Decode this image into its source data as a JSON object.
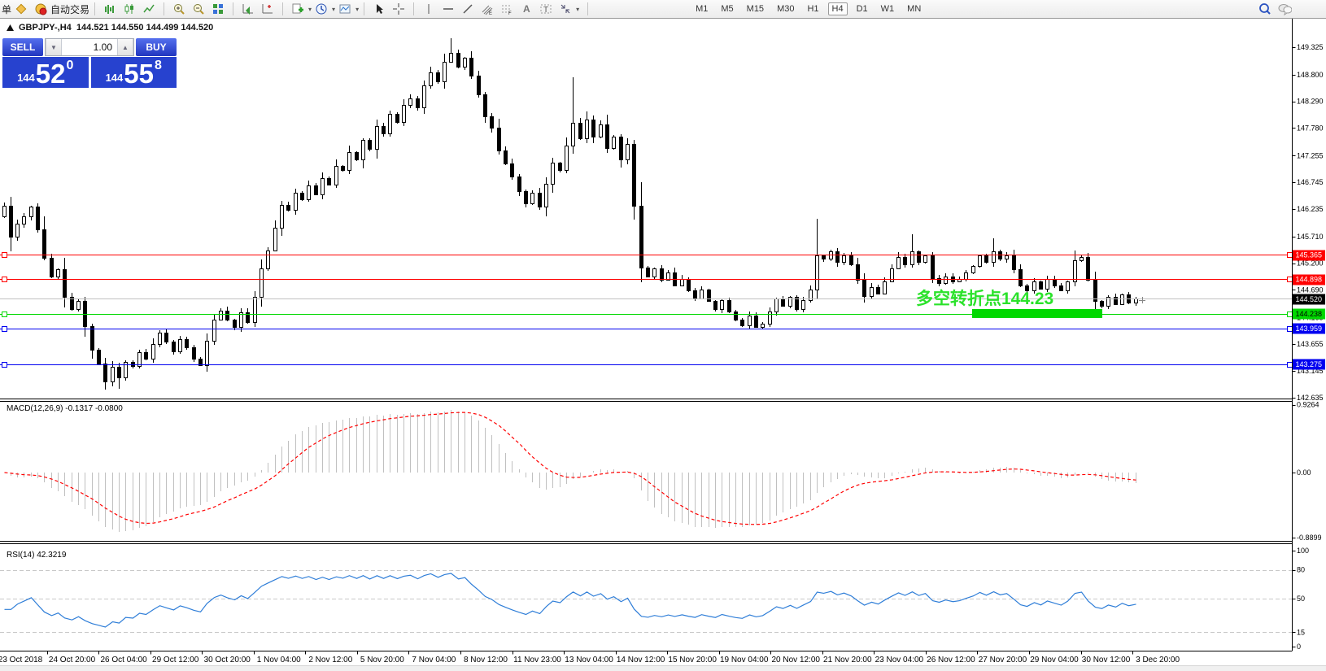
{
  "toolbar": {
    "clipped_left_label": "单",
    "autotrade_label": "自动交易",
    "timeframes": [
      "M1",
      "M5",
      "M15",
      "M30",
      "H1",
      "H4",
      "D1",
      "W1",
      "MN"
    ],
    "active_timeframe": "H4"
  },
  "chart": {
    "title": {
      "symbol": "GBPJPY-,H4",
      "open": "144.521",
      "high": "144.550",
      "low": "144.499",
      "close": "144.520"
    },
    "trade_panel": {
      "sell_label": "SELL",
      "buy_label": "BUY",
      "lot": "1.00",
      "sell_price": {
        "prefix": "144",
        "big": "52",
        "sup": "0"
      },
      "buy_price": {
        "prefix": "144",
        "big": "55",
        "sup": "8"
      }
    },
    "annotation": {
      "text": "多空转折点144.23",
      "color": "#2be22b",
      "bar_color": "#00d800"
    },
    "current_price": {
      "value": "144.520",
      "line_color": "#c0c0c0",
      "label_bg": "#000000",
      "label_fg": "#ffffff"
    },
    "levels": [
      {
        "price": 145.365,
        "label": "145.365",
        "color": "#ff0000",
        "label_fg": "#ffffff"
      },
      {
        "price": 144.898,
        "label": "144.898",
        "color": "#ff0000",
        "label_fg": "#ffffff"
      },
      {
        "price": 144.238,
        "label": "144.238",
        "color": "#00d800",
        "label_fg": "#000000"
      },
      {
        "price": 143.959,
        "label": "143.959",
        "color": "#0000f0",
        "label_fg": "#ffffff"
      },
      {
        "price": 143.275,
        "label": "143.275",
        "color": "#0000f0",
        "label_fg": "#ffffff"
      }
    ],
    "y_ticks": [
      "149.325",
      "148.800",
      "148.290",
      "147.780",
      "147.255",
      "146.745",
      "146.235",
      "145.710",
      "145.200",
      "144.690",
      "144.165",
      "143.655",
      "143.145",
      "142.635"
    ],
    "x_labels": [
      "23 Oct 2018",
      "24 Oct 20:00",
      "26 Oct 04:00",
      "29 Oct 12:00",
      "30 Oct 20:00",
      "1 Nov 04:00",
      "2 Nov 12:00",
      "5 Nov 20:00",
      "7 Nov 04:00",
      "8 Nov 12:00",
      "11 Nov 23:00",
      "13 Nov 04:00",
      "14 Nov 12:00",
      "15 Nov 20:00",
      "19 Nov 04:00",
      "20 Nov 12:00",
      "21 Nov 20:00",
      "23 Nov 04:00",
      "26 Nov 12:00",
      "27 Nov 20:00",
      "29 Nov 04:00",
      "30 Nov 12:00",
      "3 Dec 20:00"
    ]
  },
  "chart_data": {
    "type": "candlestick",
    "symbol": "GBPJPY",
    "timeframe": "H4",
    "y_axis": {
      "top_price": 149.325,
      "bottom_price": 142.635
    },
    "closes": [
      146.3,
      145.7,
      145.95,
      146.1,
      146.28,
      145.85,
      145.3,
      144.95,
      145.08,
      144.55,
      144.32,
      144.48,
      144.0,
      143.55,
      143.28,
      142.95,
      143.22,
      143.02,
      143.32,
      143.24,
      143.5,
      143.38,
      143.65,
      143.88,
      143.7,
      143.52,
      143.75,
      143.6,
      143.38,
      143.25,
      143.72,
      144.12,
      144.3,
      144.12,
      143.98,
      144.26,
      144.08,
      144.55,
      145.1,
      145.45,
      145.88,
      146.32,
      146.22,
      146.55,
      146.42,
      146.68,
      146.52,
      146.82,
      146.7,
      147.05,
      146.98,
      147.32,
      147.18,
      147.55,
      147.38,
      147.82,
      147.68,
      148.05,
      147.9,
      148.22,
      148.35,
      148.18,
      148.6,
      148.85,
      148.68,
      149.05,
      149.22,
      148.95,
      149.12,
      148.78,
      148.42,
      148.0,
      147.78,
      147.35,
      147.1,
      146.85,
      146.58,
      146.35,
      146.55,
      146.28,
      146.72,
      147.12,
      146.98,
      147.45,
      147.88,
      147.58,
      147.95,
      147.62,
      147.85,
      147.4,
      147.62,
      147.18,
      147.48,
      146.3,
      145.12,
      144.95,
      145.1,
      144.88,
      145.02,
      144.78,
      144.9,
      144.68,
      144.52,
      144.7,
      144.48,
      144.32,
      144.5,
      144.28,
      144.12,
      144.02,
      144.2,
      143.99,
      144.05,
      144.28,
      144.52,
      144.38,
      144.55,
      144.32,
      144.5,
      144.7,
      145.35,
      145.28,
      145.42,
      145.22,
      145.35,
      145.18,
      144.88,
      144.58,
      144.75,
      144.62,
      144.85,
      145.1,
      145.32,
      145.18,
      145.42,
      145.22,
      145.35,
      144.92,
      144.82,
      144.95,
      144.85,
      144.9,
      145.02,
      145.15,
      145.35,
      145.22,
      145.42,
      145.28,
      145.35,
      145.08,
      144.78,
      144.68,
      144.85,
      144.72,
      144.9,
      144.78,
      144.68,
      144.85,
      145.25,
      145.32,
      144.88,
      144.48,
      144.38,
      144.55,
      144.42,
      144.6,
      144.45,
      144.52
    ],
    "first_open": 146.1,
    "wick_overrides": {
      "15": {
        "low": 142.78
      },
      "17": {
        "low": 142.8
      },
      "66": {
        "high": 149.5
      },
      "84": {
        "high": 148.75
      },
      "93": {
        "high": 147.55
      },
      "120": {
        "high": 146.05
      },
      "134": {
        "high": 145.75
      },
      "146": {
        "high": 145.68
      },
      "158": {
        "high": 145.45
      },
      "161": {
        "low": 144.15
      }
    },
    "indicators": [
      {
        "name": "MACD",
        "label": "MACD(12,26,9)",
        "values_label": "-0.1317 -0.0800",
        "params": [
          12,
          26,
          9
        ],
        "axis": [
          {
            "text": "0.9264",
            "value": 0.9264
          },
          {
            "text": "0.00",
            "value": 0
          },
          {
            "text": "-0.8899",
            "value": -0.8899
          }
        ],
        "axis_max": 0.9264,
        "axis_min": -0.8899,
        "histogram_color": "#c0c0c0",
        "signal_color": "#ff0000"
      },
      {
        "name": "RSI",
        "label": "RSI(14)",
        "values_label": "42.3219",
        "params": [
          14
        ],
        "axis": [
          {
            "text": "100",
            "value": 100
          },
          {
            "text": "80",
            "value": 80
          },
          {
            "text": "50",
            "value": 50
          },
          {
            "text": "15",
            "value": 15
          },
          {
            "text": "0",
            "value": 0
          }
        ],
        "levels": [
          80,
          50,
          15
        ],
        "line_color": "#2f7ed8"
      }
    ]
  }
}
